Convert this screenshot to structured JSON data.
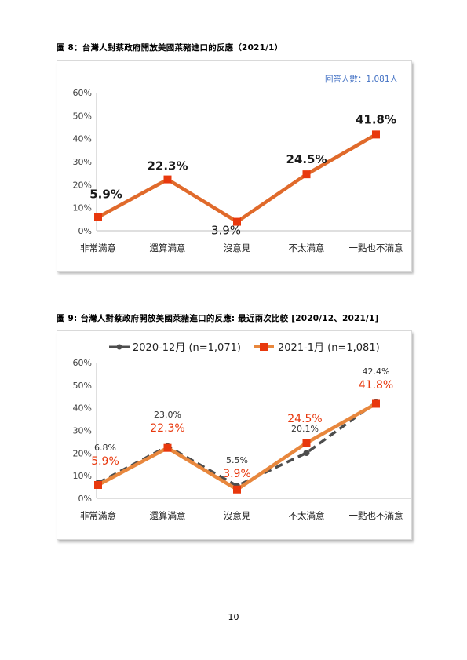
{
  "page_number": "10",
  "figures": [
    {
      "caption": "圖 8：台灣人對蔡政府開放美國萊豬進口的反應（2021/1）",
      "sample_note": "回答人數：1,081人",
      "colors": {
        "line": "#E06A2B",
        "marker": "#E8380D",
        "note": "#4472C4",
        "label": "#1a1a1a"
      }
    },
    {
      "caption": "圖 9: 台灣人對蔡政府開放美國萊豬進口的反應: 最近兩次比較 [2020/12、2021/1]",
      "legend": [
        {
          "label": "2020-12月 (n=1,071)"
        },
        {
          "label": "2021-1月 (n=1,081)"
        }
      ],
      "colors": {
        "old_line": "#4d4d4d",
        "old_label": "#333333",
        "new_line": "#E8873D",
        "new_marker": "#E8380D",
        "new_label": "#E8380D"
      }
    }
  ],
  "chart_data": [
    {
      "type": "line",
      "categories": [
        "非常滿意",
        "還算滿意",
        "沒意見",
        "不太滿意",
        "一點也不滿意"
      ],
      "series": [
        {
          "values": [
            5.9,
            22.3,
            3.9,
            24.5,
            41.8
          ],
          "labels": [
            "5.9%",
            "22.3%",
            "3.9%",
            "24.5%",
            "41.8%"
          ]
        }
      ],
      "ylim": [
        0,
        60
      ],
      "yticks": [
        0,
        10,
        20,
        30,
        40,
        50,
        60
      ],
      "ytick_labels": [
        "0%",
        "10%",
        "20%",
        "30%",
        "40%",
        "50%",
        "60%"
      ],
      "grid": false,
      "legend": "none"
    },
    {
      "type": "line",
      "categories": [
        "非常滿意",
        "還算滿意",
        "沒意見",
        "不太滿意",
        "一點也不滿意"
      ],
      "series": [
        {
          "name": "2020-12月 (n=1,071)",
          "values": [
            6.8,
            23.0,
            5.5,
            20.1,
            42.4
          ],
          "labels": [
            "6.8%",
            "23.0%",
            "5.5%",
            "20.1%",
            "42.4%"
          ]
        },
        {
          "name": "2021-1月 (n=1,081)",
          "values": [
            5.9,
            22.3,
            3.9,
            24.5,
            41.8
          ],
          "labels": [
            "5.9%",
            "22.3%",
            "3.9%",
            "24.5%",
            "41.8%"
          ]
        }
      ],
      "ylim": [
        0,
        60
      ],
      "yticks": [
        0,
        10,
        20,
        30,
        40,
        50,
        60
      ],
      "ytick_labels": [
        "0%",
        "10%",
        "20%",
        "30%",
        "40%",
        "50%",
        "60%"
      ],
      "grid": false,
      "legend": "top"
    }
  ]
}
